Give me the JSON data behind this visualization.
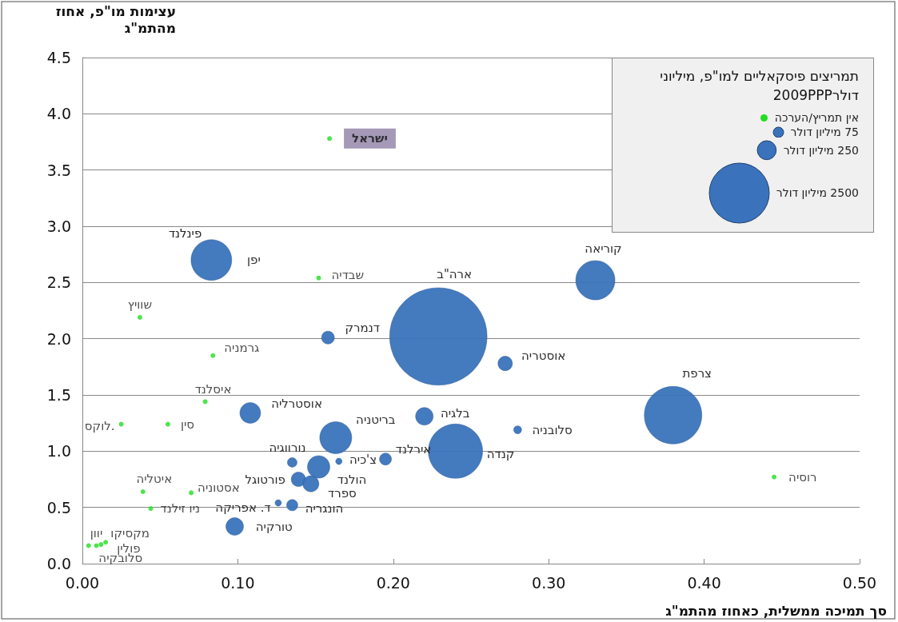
{
  "chart_data": {
    "type": "bubble",
    "xlabel": "סך תמיכה ממשלית, כאחוז מהתמ\"ג",
    "ylabel": "עצימות מו\"פ, אחוז מהתמ\"ג",
    "legend_title": "תמריצים פיסקאליים למו\"פ, מיליוני דולר2009PPP",
    "xlim": [
      0,
      0.5
    ],
    "xticks": [
      {
        "value": 0,
        "label": "0.00"
      },
      {
        "value": 0.1,
        "label": "0.10"
      },
      {
        "value": 0.2,
        "label": "0.20"
      },
      {
        "value": 0.3,
        "label": "0.30"
      },
      {
        "value": 0.4,
        "label": "0.40"
      },
      {
        "value": 0.5,
        "label": "0.50"
      }
    ],
    "ylim": [
      0,
      4.5
    ],
    "yticks": [
      {
        "value": 0,
        "label": "0.0"
      },
      {
        "value": 0.5,
        "label": "0.5"
      },
      {
        "value": 1,
        "label": "1.0"
      },
      {
        "value": 1.5,
        "label": "1.5"
      },
      {
        "value": 2,
        "label": "2.0"
      },
      {
        "value": 2.5,
        "label": "2.5"
      },
      {
        "value": 3,
        "label": "3.0"
      },
      {
        "value": 3.5,
        "label": "3.5"
      },
      {
        "value": 4,
        "label": "4.0"
      },
      {
        "value": 4.5,
        "label": "4.5"
      }
    ],
    "grid": "y",
    "legend": "top right",
    "size_legend": [
      {
        "value": 75,
        "label": "75 מיליון דולר"
      },
      {
        "value": 250,
        "label": "250 מיליון דולר"
      },
      {
        "value": 2500,
        "label": "2500 מיליון דולר"
      }
    ],
    "annotations": [
      {
        "text": "פינלנד",
        "x": 0.083,
        "y": 2.7
      }
    ],
    "series": [
      {
        "type": "bubble",
        "color": "#3a73bb",
        "x": [
          0.083,
          0.33,
          0.229,
          0.158,
          0.272,
          0.38,
          0.108,
          0.22,
          0.163,
          0.28,
          0.24,
          0.195,
          0.165,
          0.135,
          0.152,
          0.139,
          0.147,
          0.126,
          0.135,
          0.098
        ],
        "values": [
          2.7,
          2.52,
          2.02,
          2.01,
          1.78,
          1.32,
          1.34,
          1.31,
          1.12,
          1.19,
          1.0,
          0.93,
          0.91,
          0.9,
          0.86,
          0.75,
          0.71,
          0.54,
          0.52,
          0.33
        ],
        "sizes": [
          1150,
          1070,
          6600,
          115,
          145,
          2300,
          300,
          215,
          710,
          44,
          2050,
          100,
          28,
          64,
          350,
          145,
          180,
          28,
          87,
          215
        ],
        "value_labels": [
          "יפן",
          "קוריאה",
          "ארה\"ב",
          "דנמרק",
          "אוסטריה",
          "צרפת",
          "אוסטרליה",
          "בלגיה",
          "בריטניה",
          "סלובניה",
          "קנדה",
          "אירלנד",
          "צ'כיה",
          "נורווגיה",
          "הולנד",
          "פורטוגל",
          "ספרד",
          "ד. אפריקה",
          "הונגריה",
          "טורקיה"
        ]
      },
      {
        "type": "scatter",
        "name": "אין תמריץ/הערכה",
        "color": "#22dd22",
        "x": [
          0.159,
          0.152,
          0.037,
          0.084,
          0.079,
          0.025,
          0.055,
          0.039,
          0.07,
          0.044,
          0.445,
          0.009,
          0.012,
          0.015,
          0.004
        ],
        "values": [
          3.78,
          2.54,
          2.19,
          1.85,
          1.44,
          1.24,
          1.24,
          0.64,
          0.63,
          0.49,
          0.77,
          0.16,
          0.17,
          0.19,
          0.16
        ],
        "value_labels": [
          "ישראל",
          "שבדיה",
          "שוויץ",
          "גרמניה",
          "איסלנד",
          "לוקס.",
          "סין",
          "איטליה",
          "אסטוניה",
          "ניו זילנד",
          "רוסיה",
          "יוון",
          "מקסיקו",
          "פולין",
          "סלובקיה"
        ]
      }
    ]
  }
}
